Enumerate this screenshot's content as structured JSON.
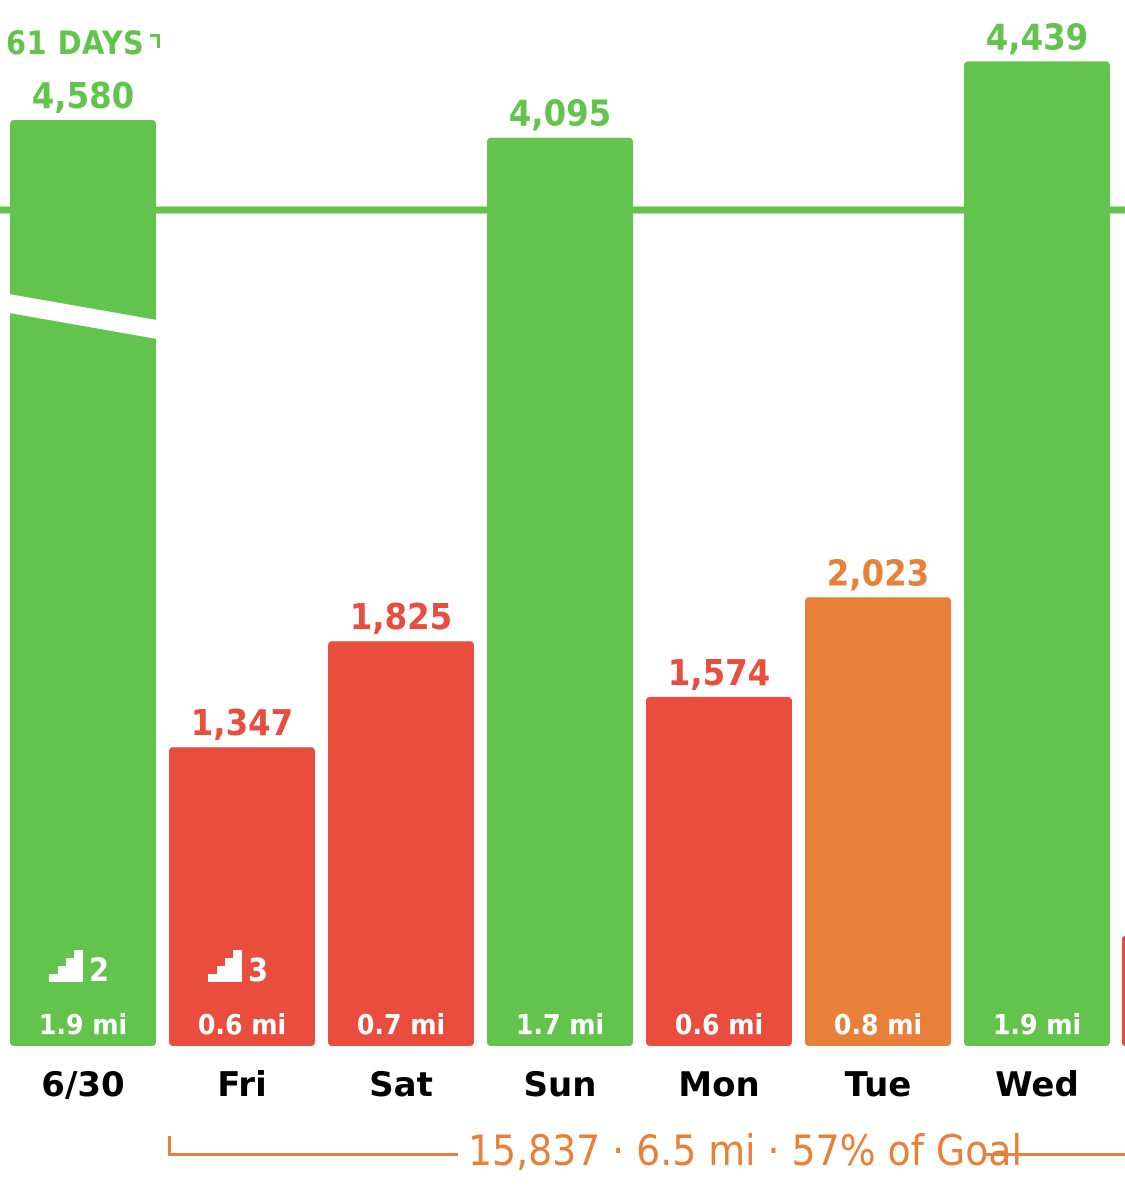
{
  "streak": {
    "label": "61 DAYS"
  },
  "chart_data": {
    "type": "bar",
    "categories": [
      "6/30",
      "Fri",
      "Sat",
      "Sun",
      "Mon",
      "Tue",
      "Wed"
    ],
    "values": [
      4580,
      1347,
      1825,
      4095,
      1574,
      2023,
      4439
    ],
    "value_labels": [
      "4,580",
      "1,347",
      "1,825",
      "4,095",
      "1,574",
      "2,023",
      "4,439"
    ],
    "distances": [
      "1.9 mi",
      "0.6 mi",
      "0.7 mi",
      "1.7 mi",
      "0.6 mi",
      "0.8 mi",
      "1.9 mi"
    ],
    "flights": [
      2,
      3,
      null,
      null,
      null,
      null,
      null
    ],
    "status": [
      "goal-met",
      "low",
      "low",
      "goal-met",
      "low",
      "medium",
      "goal-met"
    ],
    "goal_line": true,
    "ylim": [
      0,
      4800
    ],
    "title": "",
    "xlabel": "",
    "ylabel": ""
  },
  "colors": {
    "goal-met": "#62C44C",
    "low": "#E84D3D",
    "medium": "#E8803A",
    "axis_text": "#000000"
  },
  "summary": {
    "text": "15,837 · 6.5 mi · 57% of Goal"
  }
}
